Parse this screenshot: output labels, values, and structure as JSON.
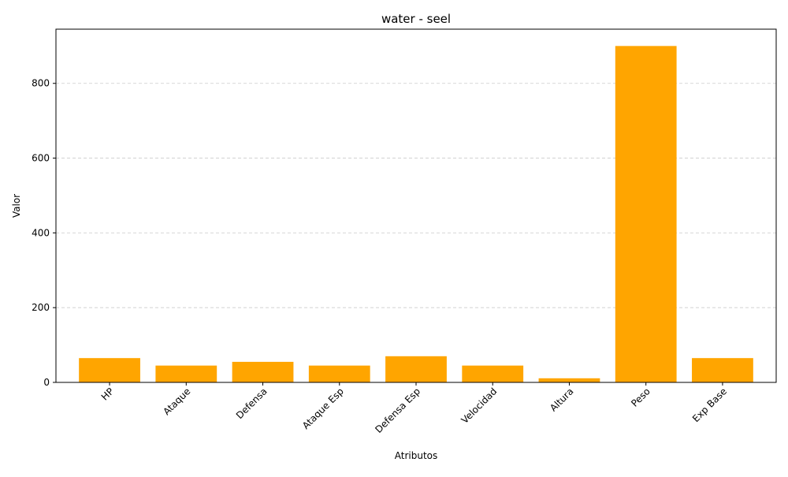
{
  "chart_data": {
    "type": "bar",
    "title": "water - seel",
    "xlabel": "Atributos",
    "ylabel": "Valor",
    "categories": [
      "HP",
      "Ataque",
      "Defensa",
      "Ataque Esp",
      "Defensa Esp",
      "Velocidad",
      "Altura",
      "Peso",
      "Exp Base"
    ],
    "values": [
      65,
      45,
      55,
      45,
      70,
      45,
      11,
      900,
      65
    ],
    "ylim": [
      0,
      945
    ],
    "yticks": [
      0,
      200,
      400,
      600,
      800
    ],
    "grid": "y-dashed",
    "bar_color": "#ffa500"
  }
}
